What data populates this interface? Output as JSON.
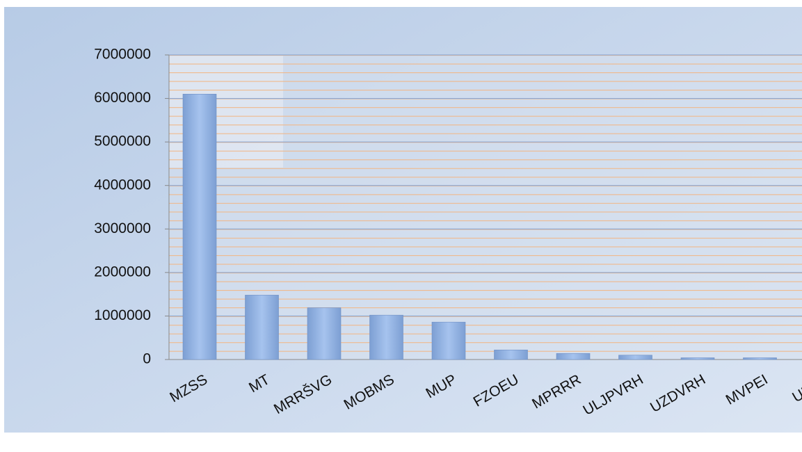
{
  "chart_data": {
    "type": "bar",
    "categories": [
      "MZSS",
      "MT",
      "MRRŠVG",
      "MOBMS",
      "MUP",
      "FZOEU",
      "MPRRR",
      "ULJPVRH",
      "UZDVRH",
      "MVPEI",
      "URSV"
    ],
    "values": [
      6100000,
      1480000,
      1190000,
      1020000,
      860000,
      220000,
      140000,
      100000,
      40000,
      40000,
      null
    ],
    "color": "#8fb2e3",
    "ylim": [
      0,
      7000000
    ],
    "yticks": [
      0,
      1000000,
      2000000,
      3000000,
      4000000,
      5000000,
      6000000,
      7000000
    ],
    "grid": true
  }
}
